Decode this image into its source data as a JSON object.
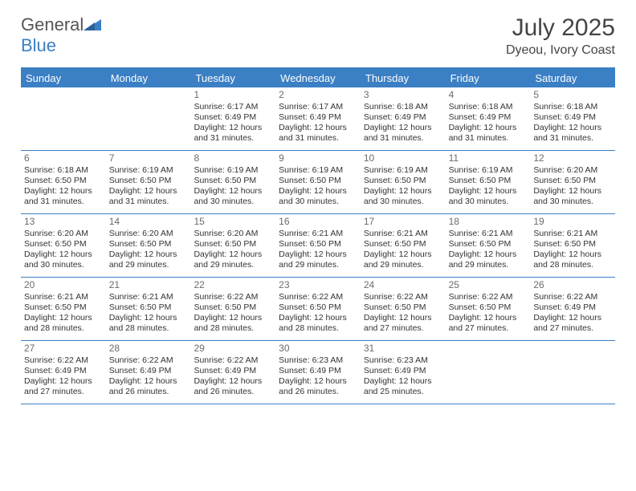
{
  "brand": {
    "textDark": "General",
    "textBlue": "Blue"
  },
  "title": "July 2025",
  "subtitle": "Dyeou, Ivory Coast",
  "colors": {
    "accent": "#3b7fc4",
    "headerText": "#ffffff",
    "text": "#333333",
    "muted": "#6b6b6b",
    "background": "#ffffff"
  },
  "dayHeaders": [
    "Sunday",
    "Monday",
    "Tuesday",
    "Wednesday",
    "Thursday",
    "Friday",
    "Saturday"
  ],
  "weeks": [
    [
      null,
      null,
      {
        "date": "1",
        "sunrise": "6:17 AM",
        "sunset": "6:49 PM",
        "daylight": "12 hours and 31 minutes."
      },
      {
        "date": "2",
        "sunrise": "6:17 AM",
        "sunset": "6:49 PM",
        "daylight": "12 hours and 31 minutes."
      },
      {
        "date": "3",
        "sunrise": "6:18 AM",
        "sunset": "6:49 PM",
        "daylight": "12 hours and 31 minutes."
      },
      {
        "date": "4",
        "sunrise": "6:18 AM",
        "sunset": "6:49 PM",
        "daylight": "12 hours and 31 minutes."
      },
      {
        "date": "5",
        "sunrise": "6:18 AM",
        "sunset": "6:49 PM",
        "daylight": "12 hours and 31 minutes."
      }
    ],
    [
      {
        "date": "6",
        "sunrise": "6:18 AM",
        "sunset": "6:50 PM",
        "daylight": "12 hours and 31 minutes."
      },
      {
        "date": "7",
        "sunrise": "6:19 AM",
        "sunset": "6:50 PM",
        "daylight": "12 hours and 31 minutes."
      },
      {
        "date": "8",
        "sunrise": "6:19 AM",
        "sunset": "6:50 PM",
        "daylight": "12 hours and 30 minutes."
      },
      {
        "date": "9",
        "sunrise": "6:19 AM",
        "sunset": "6:50 PM",
        "daylight": "12 hours and 30 minutes."
      },
      {
        "date": "10",
        "sunrise": "6:19 AM",
        "sunset": "6:50 PM",
        "daylight": "12 hours and 30 minutes."
      },
      {
        "date": "11",
        "sunrise": "6:19 AM",
        "sunset": "6:50 PM",
        "daylight": "12 hours and 30 minutes."
      },
      {
        "date": "12",
        "sunrise": "6:20 AM",
        "sunset": "6:50 PM",
        "daylight": "12 hours and 30 minutes."
      }
    ],
    [
      {
        "date": "13",
        "sunrise": "6:20 AM",
        "sunset": "6:50 PM",
        "daylight": "12 hours and 30 minutes."
      },
      {
        "date": "14",
        "sunrise": "6:20 AM",
        "sunset": "6:50 PM",
        "daylight": "12 hours and 29 minutes."
      },
      {
        "date": "15",
        "sunrise": "6:20 AM",
        "sunset": "6:50 PM",
        "daylight": "12 hours and 29 minutes."
      },
      {
        "date": "16",
        "sunrise": "6:21 AM",
        "sunset": "6:50 PM",
        "daylight": "12 hours and 29 minutes."
      },
      {
        "date": "17",
        "sunrise": "6:21 AM",
        "sunset": "6:50 PM",
        "daylight": "12 hours and 29 minutes."
      },
      {
        "date": "18",
        "sunrise": "6:21 AM",
        "sunset": "6:50 PM",
        "daylight": "12 hours and 29 minutes."
      },
      {
        "date": "19",
        "sunrise": "6:21 AM",
        "sunset": "6:50 PM",
        "daylight": "12 hours and 28 minutes."
      }
    ],
    [
      {
        "date": "20",
        "sunrise": "6:21 AM",
        "sunset": "6:50 PM",
        "daylight": "12 hours and 28 minutes."
      },
      {
        "date": "21",
        "sunrise": "6:21 AM",
        "sunset": "6:50 PM",
        "daylight": "12 hours and 28 minutes."
      },
      {
        "date": "22",
        "sunrise": "6:22 AM",
        "sunset": "6:50 PM",
        "daylight": "12 hours and 28 minutes."
      },
      {
        "date": "23",
        "sunrise": "6:22 AM",
        "sunset": "6:50 PM",
        "daylight": "12 hours and 28 minutes."
      },
      {
        "date": "24",
        "sunrise": "6:22 AM",
        "sunset": "6:50 PM",
        "daylight": "12 hours and 27 minutes."
      },
      {
        "date": "25",
        "sunrise": "6:22 AM",
        "sunset": "6:50 PM",
        "daylight": "12 hours and 27 minutes."
      },
      {
        "date": "26",
        "sunrise": "6:22 AM",
        "sunset": "6:49 PM",
        "daylight": "12 hours and 27 minutes."
      }
    ],
    [
      {
        "date": "27",
        "sunrise": "6:22 AM",
        "sunset": "6:49 PM",
        "daylight": "12 hours and 27 minutes."
      },
      {
        "date": "28",
        "sunrise": "6:22 AM",
        "sunset": "6:49 PM",
        "daylight": "12 hours and 26 minutes."
      },
      {
        "date": "29",
        "sunrise": "6:22 AM",
        "sunset": "6:49 PM",
        "daylight": "12 hours and 26 minutes."
      },
      {
        "date": "30",
        "sunrise": "6:23 AM",
        "sunset": "6:49 PM",
        "daylight": "12 hours and 26 minutes."
      },
      {
        "date": "31",
        "sunrise": "6:23 AM",
        "sunset": "6:49 PM",
        "daylight": "12 hours and 25 minutes."
      },
      null,
      null
    ]
  ],
  "labels": {
    "sunrise": "Sunrise:",
    "sunset": "Sunset:",
    "daylight": "Daylight:"
  }
}
